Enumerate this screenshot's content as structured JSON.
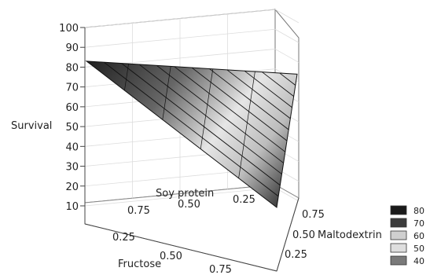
{
  "chart_data": {
    "type": "surface",
    "title": "",
    "zlabel": "Survival",
    "axes": {
      "soy_protein": {
        "label": "Soy protein",
        "ticks": [
          "0.75",
          "0.50",
          "0.25"
        ]
      },
      "fructose": {
        "label": "Fructose",
        "ticks": [
          "0.25",
          "0.50",
          "0.75"
        ]
      },
      "maltodextrin": {
        "label": "Maltodextrin",
        "ticks": [
          "0.75",
          "0.50",
          "0.25"
        ]
      }
    },
    "zlim": [
      10,
      100
    ],
    "z_ticks": [
      10,
      20,
      30,
      40,
      50,
      60,
      70,
      80,
      90,
      100
    ],
    "corners": [
      {
        "component": "Soy protein",
        "survival": 85
      },
      {
        "component": "Maltodextrin",
        "survival": 63
      },
      {
        "component": "Fructose",
        "survival": 11
      }
    ],
    "legend": {
      "placement": "bottom-right",
      "levels": [
        {
          "label": "80",
          "color": "#1a1a1a"
        },
        {
          "label": "70",
          "color": "#3c3c3c"
        },
        {
          "label": "60",
          "color": "#cfcfcf"
        },
        {
          "label": "50",
          "color": "#dedede"
        },
        {
          "label": "40",
          "color": "#7a7a7a"
        }
      ]
    },
    "grid": true
  }
}
